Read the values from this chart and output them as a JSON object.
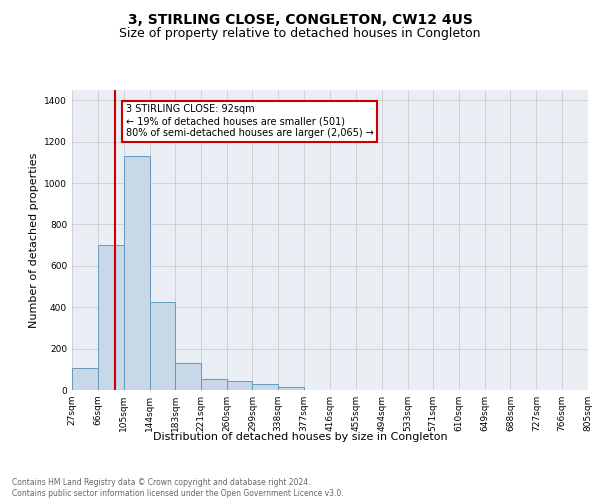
{
  "title": "3, STIRLING CLOSE, CONGLETON, CW12 4US",
  "subtitle": "Size of property relative to detached houses in Congleton",
  "xlabel": "Distribution of detached houses by size in Congleton",
  "ylabel": "Number of detached properties",
  "bar_edges": [
    27,
    66,
    105,
    144,
    183,
    221,
    260,
    299,
    338,
    377,
    416,
    455,
    494,
    533,
    571,
    610,
    649,
    688,
    727,
    766,
    805
  ],
  "bar_heights": [
    105,
    700,
    1130,
    425,
    130,
    55,
    45,
    28,
    15,
    0,
    0,
    0,
    0,
    0,
    0,
    0,
    0,
    0,
    0,
    0
  ],
  "bar_color": "#c8d8e8",
  "bar_edgecolor": "#6699bb",
  "vline_x": 92,
  "vline_color": "#cc0000",
  "annotation_text": "3 STIRLING CLOSE: 92sqm\n← 19% of detached houses are smaller (501)\n80% of semi-detached houses are larger (2,065) →",
  "annotation_box_color": "#ffffff",
  "annotation_box_edgecolor": "#cc0000",
  "ylim": [
    0,
    1450
  ],
  "yticks": [
    0,
    200,
    400,
    600,
    800,
    1000,
    1200,
    1400
  ],
  "grid_color": "#cccccc",
  "background_color": "#e8eef4",
  "footer_text": "Contains HM Land Registry data © Crown copyright and database right 2024.\nContains public sector information licensed under the Open Government Licence v3.0.",
  "title_fontsize": 10,
  "subtitle_fontsize": 9,
  "annot_fontsize": 7,
  "ylabel_fontsize": 8,
  "xlabel_fontsize": 8,
  "footer_fontsize": 5.5,
  "tick_fontsize": 6.5
}
